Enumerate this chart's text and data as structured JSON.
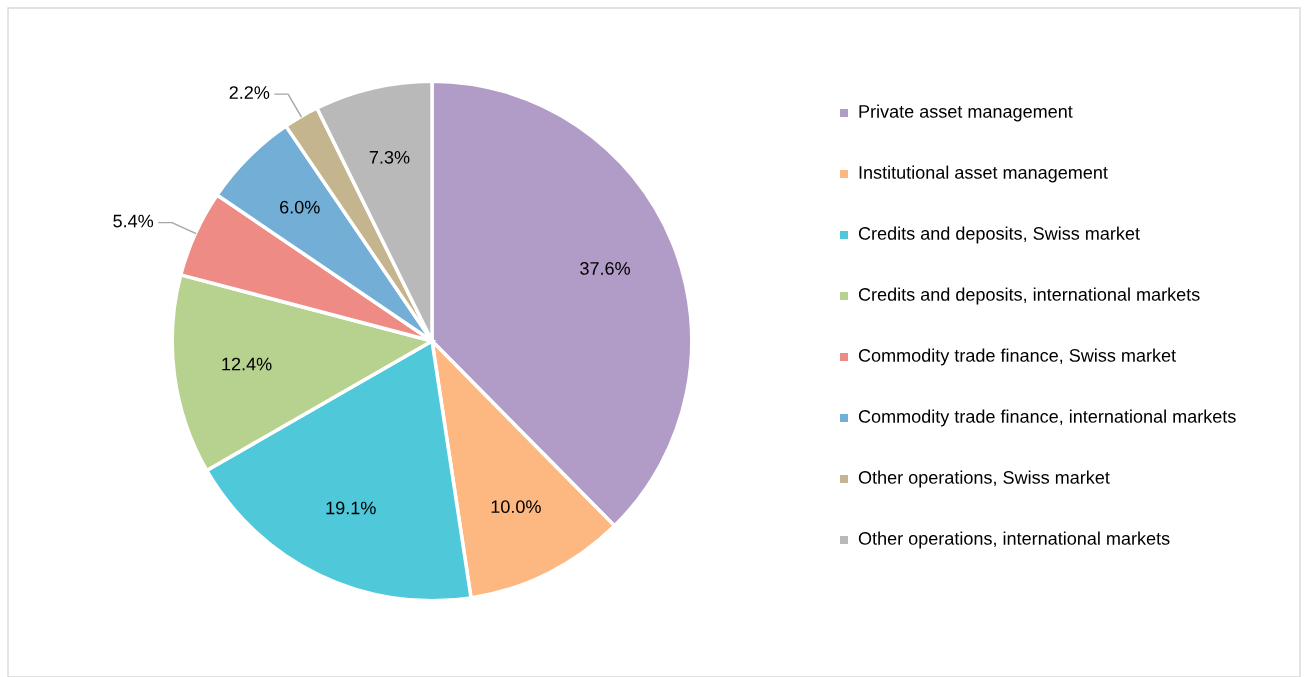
{
  "chart_data": {
    "type": "pie",
    "categories": [
      "Private asset management",
      "Institutional asset management",
      "Credits and deposits, Swiss market",
      "Credits and deposits, international markets",
      "Commodity trade finance, Swiss market",
      "Commodity trade finance, international markets",
      "Other operations, Swiss market",
      "Other operations, international markets"
    ],
    "values": [
      37.6,
      10.0,
      19.1,
      12.4,
      5.4,
      6.0,
      2.2,
      7.3
    ],
    "value_labels": [
      "37.6%",
      "10.0%",
      "19.1%",
      "12.4%",
      "5.4%",
      "6.0%",
      "2.2%",
      "7.3%"
    ],
    "colors": [
      "#b19cc7",
      "#fdb881",
      "#4fc8da",
      "#b7d18f",
      "#ef8b85",
      "#73aed6",
      "#c4b58e",
      "#b9b9b9"
    ],
    "legend": "right"
  }
}
